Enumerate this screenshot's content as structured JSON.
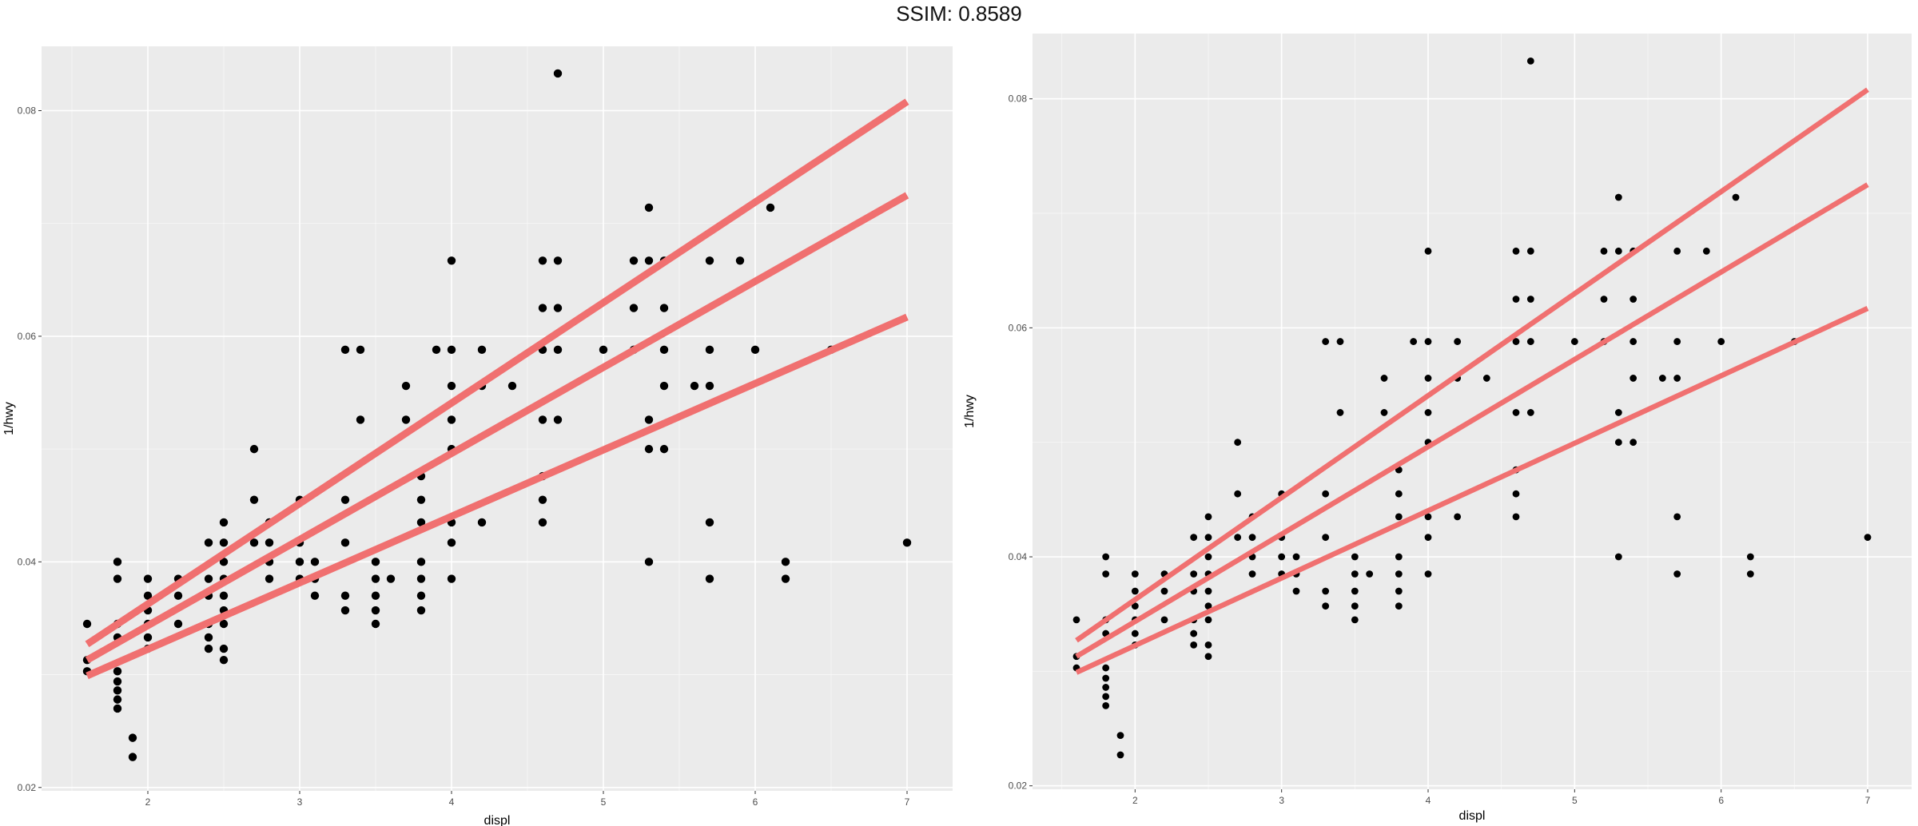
{
  "page_title": "SSIM: 0.8589",
  "colors": {
    "panel_bg": "#ebebeb",
    "grid": "#ffffff",
    "fit_line": "#f07070",
    "point": "#000000",
    "tick_text": "#4d4d4d"
  },
  "chart_data": [
    {
      "type": "scatter",
      "title": "",
      "xlabel": "displ",
      "ylabel": "1/hwy",
      "xlim": [
        1.3,
        7.3
      ],
      "ylim": [
        0.0197,
        0.0857
      ],
      "x_ticks": [
        2,
        3,
        4,
        5,
        6,
        7
      ],
      "y_ticks": [
        0.02,
        0.04,
        0.06,
        0.08
      ],
      "y_tick_labels": [
        "0.02",
        "0.04",
        "0.06",
        "0.08"
      ],
      "grid": true,
      "points": [
        [
          1.6,
          0.0345
        ],
        [
          1.6,
          0.0313
        ],
        [
          1.6,
          0.0303
        ],
        [
          1.8,
          0.04
        ],
        [
          1.8,
          0.0385
        ],
        [
          1.8,
          0.0345
        ],
        [
          1.8,
          0.0333
        ],
        [
          1.8,
          0.0303
        ],
        [
          1.8,
          0.0294
        ],
        [
          1.8,
          0.0286
        ],
        [
          1.8,
          0.0278
        ],
        [
          1.8,
          0.027
        ],
        [
          1.9,
          0.0244
        ],
        [
          1.9,
          0.0227
        ],
        [
          2.0,
          0.0385
        ],
        [
          2.0,
          0.037
        ],
        [
          2.0,
          0.0357
        ],
        [
          2.0,
          0.0345
        ],
        [
          2.0,
          0.0333
        ],
        [
          2.0,
          0.0323
        ],
        [
          2.2,
          0.0385
        ],
        [
          2.2,
          0.037
        ],
        [
          2.2,
          0.0345
        ],
        [
          2.4,
          0.0417
        ],
        [
          2.4,
          0.0385
        ],
        [
          2.4,
          0.037
        ],
        [
          2.4,
          0.0345
        ],
        [
          2.4,
          0.0333
        ],
        [
          2.4,
          0.0323
        ],
        [
          2.5,
          0.0435
        ],
        [
          2.5,
          0.0417
        ],
        [
          2.5,
          0.04
        ],
        [
          2.5,
          0.0385
        ],
        [
          2.5,
          0.037
        ],
        [
          2.5,
          0.0357
        ],
        [
          2.5,
          0.0345
        ],
        [
          2.5,
          0.0323
        ],
        [
          2.5,
          0.0313
        ],
        [
          2.7,
          0.05
        ],
        [
          2.7,
          0.0455
        ],
        [
          2.7,
          0.0417
        ],
        [
          2.8,
          0.0435
        ],
        [
          2.8,
          0.0417
        ],
        [
          2.8,
          0.04
        ],
        [
          2.8,
          0.0385
        ],
        [
          3.0,
          0.0455
        ],
        [
          3.0,
          0.0417
        ],
        [
          3.0,
          0.04
        ],
        [
          3.0,
          0.0385
        ],
        [
          3.1,
          0.04
        ],
        [
          3.1,
          0.0385
        ],
        [
          3.1,
          0.037
        ],
        [
          3.3,
          0.0588
        ],
        [
          3.3,
          0.0455
        ],
        [
          3.3,
          0.0417
        ],
        [
          3.3,
          0.037
        ],
        [
          3.3,
          0.0357
        ],
        [
          3.4,
          0.0588
        ],
        [
          3.4,
          0.0526
        ],
        [
          3.5,
          0.04
        ],
        [
          3.5,
          0.0385
        ],
        [
          3.5,
          0.037
        ],
        [
          3.5,
          0.0357
        ],
        [
          3.5,
          0.0345
        ],
        [
          3.6,
          0.0385
        ],
        [
          3.7,
          0.0556
        ],
        [
          3.7,
          0.0526
        ],
        [
          3.8,
          0.0476
        ],
        [
          3.8,
          0.0455
        ],
        [
          3.8,
          0.0435
        ],
        [
          3.8,
          0.04
        ],
        [
          3.8,
          0.0385
        ],
        [
          3.8,
          0.037
        ],
        [
          3.8,
          0.0357
        ],
        [
          3.9,
          0.0588
        ],
        [
          4.0,
          0.0667
        ],
        [
          4.0,
          0.0588
        ],
        [
          4.0,
          0.0556
        ],
        [
          4.0,
          0.0526
        ],
        [
          4.0,
          0.05
        ],
        [
          4.0,
          0.0435
        ],
        [
          4.0,
          0.0417
        ],
        [
          4.0,
          0.0385
        ],
        [
          4.2,
          0.0588
        ],
        [
          4.2,
          0.0556
        ],
        [
          4.2,
          0.0435
        ],
        [
          4.4,
          0.0556
        ],
        [
          4.6,
          0.0667
        ],
        [
          4.6,
          0.0625
        ],
        [
          4.6,
          0.0588
        ],
        [
          4.6,
          0.0526
        ],
        [
          4.6,
          0.0476
        ],
        [
          4.6,
          0.0455
        ],
        [
          4.6,
          0.0435
        ],
        [
          4.7,
          0.0833
        ],
        [
          4.7,
          0.0667
        ],
        [
          4.7,
          0.0625
        ],
        [
          4.7,
          0.0588
        ],
        [
          4.7,
          0.0526
        ],
        [
          5.0,
          0.0588
        ],
        [
          5.2,
          0.0667
        ],
        [
          5.2,
          0.0625
        ],
        [
          5.2,
          0.0588
        ],
        [
          5.3,
          0.0714
        ],
        [
          5.3,
          0.0667
        ],
        [
          5.3,
          0.0526
        ],
        [
          5.3,
          0.05
        ],
        [
          5.3,
          0.04
        ],
        [
          5.4,
          0.0667
        ],
        [
          5.4,
          0.0625
        ],
        [
          5.4,
          0.0588
        ],
        [
          5.4,
          0.0556
        ],
        [
          5.4,
          0.05
        ],
        [
          5.6,
          0.0556
        ],
        [
          5.7,
          0.0667
        ],
        [
          5.7,
          0.0588
        ],
        [
          5.7,
          0.0556
        ],
        [
          5.7,
          0.0435
        ],
        [
          5.7,
          0.0385
        ],
        [
          5.9,
          0.0667
        ],
        [
          6.0,
          0.0588
        ],
        [
          6.1,
          0.0714
        ],
        [
          6.2,
          0.04
        ],
        [
          6.2,
          0.0385
        ],
        [
          6.5,
          0.0588
        ],
        [
          7.0,
          0.0417
        ]
      ],
      "fit_lines": [
        {
          "x": [
            1.6,
            7.0
          ],
          "y": [
            0.0327,
            0.0808
          ]
        },
        {
          "x": [
            1.6,
            7.0
          ],
          "y": [
            0.0313,
            0.0725
          ]
        },
        {
          "x": [
            1.6,
            7.0
          ],
          "y": [
            0.0299,
            0.0617
          ]
        }
      ]
    },
    {
      "type": "scatter",
      "title": "",
      "xlabel": "displ",
      "ylabel": "1/hwy",
      "xlim": [
        1.3,
        7.3
      ],
      "ylim": [
        0.0197,
        0.0857
      ],
      "x_ticks": [
        2,
        3,
        4,
        5,
        6,
        7
      ],
      "y_ticks": [
        0.02,
        0.04,
        0.06,
        0.08
      ],
      "y_tick_labels": [
        "0.02",
        "0.04",
        "0.06",
        "0.08"
      ],
      "grid": true,
      "points": [
        [
          1.6,
          0.0345
        ],
        [
          1.6,
          0.0313
        ],
        [
          1.6,
          0.0303
        ],
        [
          1.8,
          0.04
        ],
        [
          1.8,
          0.0385
        ],
        [
          1.8,
          0.0345
        ],
        [
          1.8,
          0.0333
        ],
        [
          1.8,
          0.0303
        ],
        [
          1.8,
          0.0294
        ],
        [
          1.8,
          0.0286
        ],
        [
          1.8,
          0.0278
        ],
        [
          1.8,
          0.027
        ],
        [
          1.9,
          0.0244
        ],
        [
          1.9,
          0.0227
        ],
        [
          2.0,
          0.0385
        ],
        [
          2.0,
          0.037
        ],
        [
          2.0,
          0.0357
        ],
        [
          2.0,
          0.0345
        ],
        [
          2.0,
          0.0333
        ],
        [
          2.0,
          0.0323
        ],
        [
          2.2,
          0.0385
        ],
        [
          2.2,
          0.037
        ],
        [
          2.2,
          0.0345
        ],
        [
          2.4,
          0.0417
        ],
        [
          2.4,
          0.0385
        ],
        [
          2.4,
          0.037
        ],
        [
          2.4,
          0.0345
        ],
        [
          2.4,
          0.0333
        ],
        [
          2.4,
          0.0323
        ],
        [
          2.5,
          0.0435
        ],
        [
          2.5,
          0.0417
        ],
        [
          2.5,
          0.04
        ],
        [
          2.5,
          0.0385
        ],
        [
          2.5,
          0.037
        ],
        [
          2.5,
          0.0357
        ],
        [
          2.5,
          0.0345
        ],
        [
          2.5,
          0.0323
        ],
        [
          2.5,
          0.0313
        ],
        [
          2.7,
          0.05
        ],
        [
          2.7,
          0.0455
        ],
        [
          2.7,
          0.0417
        ],
        [
          2.8,
          0.0435
        ],
        [
          2.8,
          0.0417
        ],
        [
          2.8,
          0.04
        ],
        [
          2.8,
          0.0385
        ],
        [
          3.0,
          0.0455
        ],
        [
          3.0,
          0.0417
        ],
        [
          3.0,
          0.04
        ],
        [
          3.0,
          0.0385
        ],
        [
          3.1,
          0.04
        ],
        [
          3.1,
          0.0385
        ],
        [
          3.1,
          0.037
        ],
        [
          3.3,
          0.0588
        ],
        [
          3.3,
          0.0455
        ],
        [
          3.3,
          0.0417
        ],
        [
          3.3,
          0.037
        ],
        [
          3.3,
          0.0357
        ],
        [
          3.4,
          0.0588
        ],
        [
          3.4,
          0.0526
        ],
        [
          3.5,
          0.04
        ],
        [
          3.5,
          0.0385
        ],
        [
          3.5,
          0.037
        ],
        [
          3.5,
          0.0357
        ],
        [
          3.5,
          0.0345
        ],
        [
          3.6,
          0.0385
        ],
        [
          3.7,
          0.0556
        ],
        [
          3.7,
          0.0526
        ],
        [
          3.8,
          0.0476
        ],
        [
          3.8,
          0.0455
        ],
        [
          3.8,
          0.0435
        ],
        [
          3.8,
          0.04
        ],
        [
          3.8,
          0.0385
        ],
        [
          3.8,
          0.037
        ],
        [
          3.8,
          0.0357
        ],
        [
          3.9,
          0.0588
        ],
        [
          4.0,
          0.0667
        ],
        [
          4.0,
          0.0588
        ],
        [
          4.0,
          0.0556
        ],
        [
          4.0,
          0.0526
        ],
        [
          4.0,
          0.05
        ],
        [
          4.0,
          0.0435
        ],
        [
          4.0,
          0.0417
        ],
        [
          4.0,
          0.0385
        ],
        [
          4.2,
          0.0588
        ],
        [
          4.2,
          0.0556
        ],
        [
          4.2,
          0.0435
        ],
        [
          4.4,
          0.0556
        ],
        [
          4.6,
          0.0667
        ],
        [
          4.6,
          0.0625
        ],
        [
          4.6,
          0.0588
        ],
        [
          4.6,
          0.0526
        ],
        [
          4.6,
          0.0476
        ],
        [
          4.6,
          0.0455
        ],
        [
          4.6,
          0.0435
        ],
        [
          4.7,
          0.0833
        ],
        [
          4.7,
          0.0667
        ],
        [
          4.7,
          0.0625
        ],
        [
          4.7,
          0.0588
        ],
        [
          4.7,
          0.0526
        ],
        [
          5.0,
          0.0588
        ],
        [
          5.2,
          0.0667
        ],
        [
          5.2,
          0.0625
        ],
        [
          5.2,
          0.0588
        ],
        [
          5.3,
          0.0714
        ],
        [
          5.3,
          0.0667
        ],
        [
          5.3,
          0.0526
        ],
        [
          5.3,
          0.05
        ],
        [
          5.3,
          0.04
        ],
        [
          5.4,
          0.0667
        ],
        [
          5.4,
          0.0625
        ],
        [
          5.4,
          0.0588
        ],
        [
          5.4,
          0.0556
        ],
        [
          5.4,
          0.05
        ],
        [
          5.6,
          0.0556
        ],
        [
          5.7,
          0.0667
        ],
        [
          5.7,
          0.0588
        ],
        [
          5.7,
          0.0556
        ],
        [
          5.7,
          0.0435
        ],
        [
          5.7,
          0.0385
        ],
        [
          5.9,
          0.0667
        ],
        [
          6.0,
          0.0588
        ],
        [
          6.1,
          0.0714
        ],
        [
          6.2,
          0.04
        ],
        [
          6.2,
          0.0385
        ],
        [
          6.5,
          0.0588
        ],
        [
          7.0,
          0.0417
        ]
      ],
      "fit_lines": [
        {
          "x": [
            1.6,
            7.0
          ],
          "y": [
            0.0327,
            0.0808
          ]
        },
        {
          "x": [
            1.6,
            7.0
          ],
          "y": [
            0.0313,
            0.0725
          ]
        },
        {
          "x": [
            1.6,
            7.0
          ],
          "y": [
            0.0299,
            0.0617
          ]
        }
      ]
    }
  ]
}
